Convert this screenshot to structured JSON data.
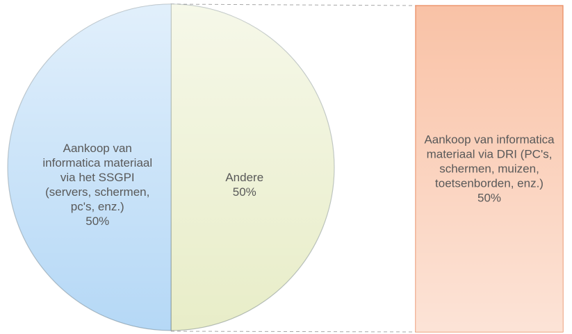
{
  "chart_data": {
    "type": "bar-of-pie",
    "categories": [
      "Andere",
      "Aankoop van informatica materiaal via het SSGPI (servers, schermen, pc's, enz.)"
    ],
    "values": [
      50,
      50
    ],
    "value_labels": [
      "50%",
      "50%"
    ],
    "colors": [
      "#e8edc8",
      "#b5d8f6"
    ],
    "secondary": {
      "categories": [
        "Aankoop van informatica materiaal via DRI (PC's, schermen, muizen, toetsenborden, enz.)"
      ],
      "values": [
        50
      ],
      "value_labels": [
        "50%"
      ],
      "colors": [
        "#f9c2a6"
      ]
    }
  }
}
